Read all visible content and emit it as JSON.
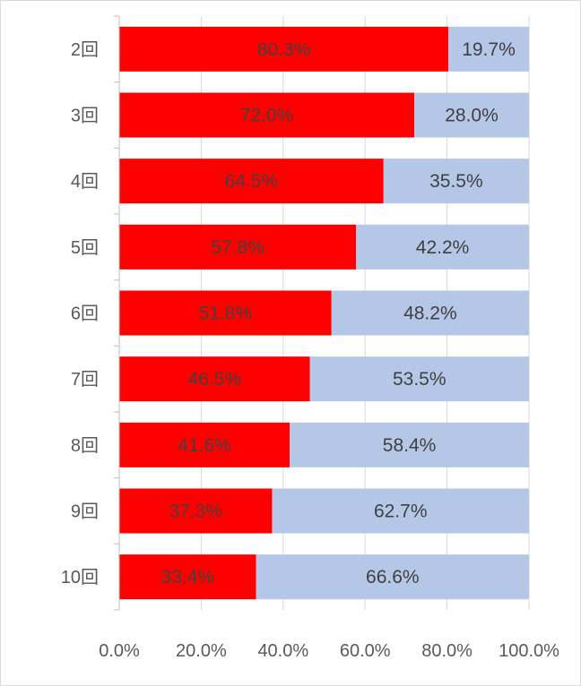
{
  "chart_data": {
    "type": "bar",
    "orientation": "horizontal",
    "stacked": "percent",
    "categories": [
      "2回",
      "3回",
      "4回",
      "5回",
      "6回",
      "7回",
      "8回",
      "9回",
      "10回"
    ],
    "series": [
      {
        "color": "#ff0000",
        "values": [
          80.3,
          72.0,
          64.5,
          57.8,
          51.8,
          46.5,
          41.6,
          37.3,
          33.4
        ],
        "labels": [
          "80.3%",
          "72.0%",
          "64.5%",
          "57.8%",
          "51.8%",
          "46.5%",
          "41.6%",
          "37.3%",
          "33.4%"
        ]
      },
      {
        "color": "#b4c7e7",
        "values": [
          19.7,
          28.0,
          35.5,
          42.2,
          48.2,
          53.5,
          58.4,
          62.7,
          66.6
        ],
        "labels": [
          "19.7%",
          "28.0%",
          "35.5%",
          "42.2%",
          "48.2%",
          "53.5%",
          "58.4%",
          "62.7%",
          "66.6%"
        ]
      }
    ],
    "xlim": [
      0,
      100
    ],
    "x_ticks": [
      "0.0%",
      "20.0%",
      "40.0%",
      "60.0%",
      "80.0%",
      "100.0%"
    ],
    "grid": true,
    "legend": "none"
  }
}
